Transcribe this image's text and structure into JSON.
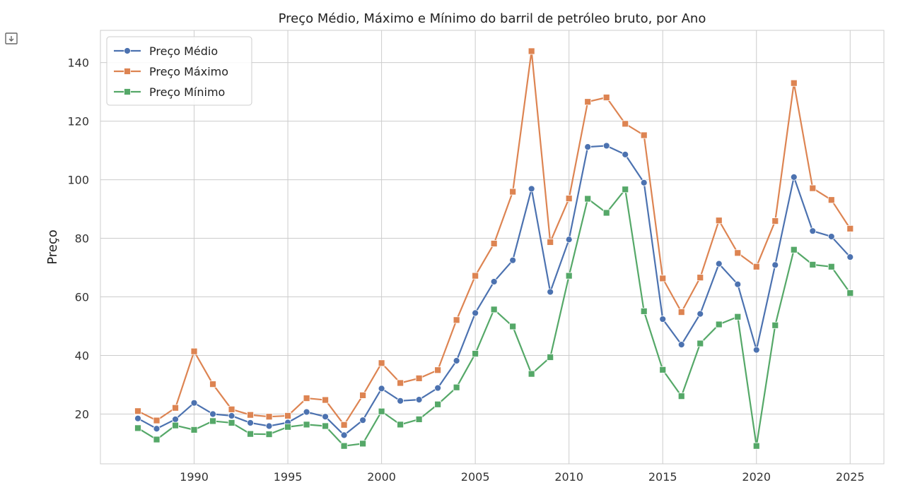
{
  "ui": {
    "expand_icon": "output-expand-icon"
  },
  "chart_data": {
    "type": "line",
    "title": "Preço Médio, Máximo e Mínimo do barril de petróleo bruto, por Ano",
    "xlabel": "",
    "ylabel": "Preço",
    "xlim": [
      1985.0,
      2026.8
    ],
    "ylim": [
      3,
      151
    ],
    "xticks": [
      1990,
      1995,
      2000,
      2005,
      2010,
      2015,
      2020,
      2025
    ],
    "yticks": [
      20,
      40,
      60,
      80,
      100,
      120,
      140
    ],
    "grid": true,
    "legend": "top-left",
    "x": [
      1987,
      1988,
      1989,
      1990,
      1991,
      1992,
      1993,
      1994,
      1995,
      1996,
      1997,
      1998,
      1999,
      2000,
      2001,
      2002,
      2003,
      2004,
      2005,
      2006,
      2007,
      2008,
      2009,
      2010,
      2011,
      2012,
      2013,
      2014,
      2015,
      2016,
      2017,
      2018,
      2019,
      2020,
      2021,
      2022,
      2023,
      2024,
      2025
    ],
    "series": [
      {
        "name": "Preço Médio",
        "color": "#4c72b0",
        "marker": "circle",
        "values": [
          18.5,
          15.0,
          18.2,
          23.8,
          20.0,
          19.4,
          17.0,
          15.9,
          17.1,
          20.7,
          19.1,
          12.8,
          17.9,
          28.7,
          24.5,
          24.9,
          28.9,
          38.2,
          54.5,
          65.2,
          72.5,
          96.9,
          61.7,
          79.6,
          111.2,
          111.6,
          108.6,
          99.0,
          52.4,
          43.7,
          54.2,
          71.3,
          64.3,
          41.9,
          70.9,
          100.9,
          82.5,
          80.6,
          73.6
        ]
      },
      {
        "name": "Preço Máximo",
        "color": "#dd8452",
        "marker": "square",
        "values": [
          21.0,
          17.8,
          22.1,
          41.4,
          30.2,
          21.6,
          19.7,
          19.1,
          19.4,
          25.4,
          24.8,
          16.3,
          26.4,
          37.4,
          30.6,
          32.2,
          35.0,
          52.1,
          67.2,
          78.2,
          95.9,
          143.9,
          78.7,
          93.6,
          126.6,
          128.1,
          119.1,
          115.2,
          66.3,
          54.8,
          66.6,
          86.1,
          75.0,
          70.3,
          85.9,
          133.0,
          97.1,
          93.1,
          83.3
        ]
      },
      {
        "name": "Preço Mínimo",
        "color": "#55a868",
        "marker": "square",
        "values": [
          15.2,
          11.3,
          16.1,
          14.6,
          17.6,
          17.0,
          13.2,
          13.1,
          15.6,
          16.4,
          15.9,
          9.1,
          9.9,
          20.9,
          16.4,
          18.2,
          23.3,
          29.1,
          40.6,
          55.7,
          49.9,
          33.7,
          39.4,
          67.2,
          93.5,
          88.7,
          96.7,
          55.1,
          35.1,
          26.1,
          44.1,
          50.6,
          53.2,
          9.1,
          50.3,
          76.1,
          71.0,
          70.3,
          61.3
        ]
      }
    ]
  }
}
